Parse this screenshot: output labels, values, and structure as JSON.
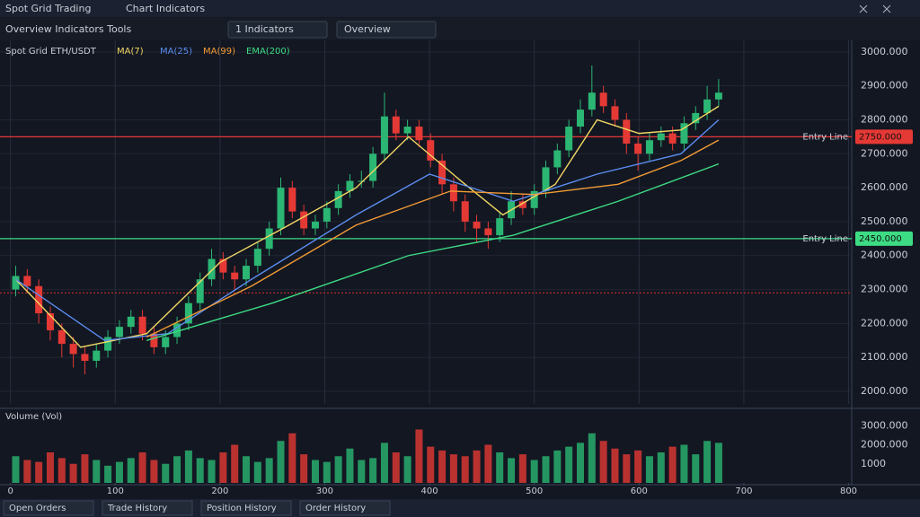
{
  "header": {
    "title": "Spot Grid Trading",
    "subtitle": "Chart Indicators"
  },
  "toolbar": {
    "label": "Overview Indicators Tools",
    "buttons": [
      "1 Indicators",
      "Overview"
    ]
  },
  "chart_data": [
    {
      "type": "candlestick",
      "title": "Spot Grid ETH/USDT",
      "x": [
        5,
        16,
        27,
        38,
        49,
        60,
        71,
        82,
        93,
        104,
        115,
        126,
        137,
        148,
        159,
        170,
        181,
        192,
        203,
        214,
        225,
        236,
        247,
        258,
        269,
        280,
        291,
        302,
        313,
        324,
        335,
        346,
        357,
        368,
        379,
        390,
        401,
        412,
        423,
        434,
        445,
        456,
        467,
        478,
        489,
        500,
        511,
        522,
        533,
        544,
        555,
        566,
        577,
        588,
        599,
        610,
        621,
        632,
        643,
        654,
        665,
        676
      ],
      "open": [
        2300,
        2340,
        2310,
        2230,
        2180,
        2140,
        2110,
        2090,
        2120,
        2160,
        2190,
        2220,
        2170,
        2130,
        2160,
        2200,
        2260,
        2330,
        2390,
        2350,
        2330,
        2370,
        2420,
        2480,
        2600,
        2530,
        2480,
        2500,
        2540,
        2590,
        2620,
        2620,
        2700,
        2810,
        2760,
        2780,
        2740,
        2680,
        2610,
        2560,
        2500,
        2480,
        2460,
        2510,
        2560,
        2540,
        2590,
        2660,
        2710,
        2780,
        2830,
        2880,
        2840,
        2800,
        2730,
        2700,
        2740,
        2760,
        2730,
        2790,
        2820,
        2860
      ],
      "high": [
        2370,
        2360,
        2330,
        2250,
        2200,
        2160,
        2130,
        2140,
        2180,
        2210,
        2240,
        2240,
        2190,
        2180,
        2220,
        2280,
        2350,
        2420,
        2410,
        2370,
        2390,
        2440,
        2500,
        2630,
        2620,
        2550,
        2520,
        2560,
        2610,
        2640,
        2650,
        2720,
        2880,
        2830,
        2800,
        2800,
        2760,
        2700,
        2630,
        2580,
        2520,
        2500,
        2530,
        2590,
        2580,
        2610,
        2680,
        2730,
        2800,
        2860,
        2960,
        2900,
        2860,
        2820,
        2750,
        2760,
        2780,
        2780,
        2810,
        2840,
        2900,
        2920
      ],
      "low": [
        2280,
        2290,
        2200,
        2150,
        2100,
        2070,
        2050,
        2070,
        2100,
        2140,
        2170,
        2150,
        2110,
        2110,
        2140,
        2180,
        2240,
        2310,
        2330,
        2300,
        2310,
        2350,
        2400,
        2460,
        2510,
        2460,
        2460,
        2480,
        2520,
        2570,
        2600,
        2600,
        2680,
        2740,
        2740,
        2720,
        2660,
        2580,
        2530,
        2470,
        2440,
        2420,
        2440,
        2490,
        2520,
        2520,
        2570,
        2640,
        2690,
        2760,
        2810,
        2820,
        2780,
        2700,
        2650,
        2680,
        2720,
        2710,
        2710,
        2770,
        2800,
        2840
      ],
      "close": [
        2340,
        2310,
        2230,
        2180,
        2140,
        2110,
        2090,
        2120,
        2160,
        2190,
        2220,
        2170,
        2130,
        2160,
        2200,
        2260,
        2330,
        2390,
        2350,
        2330,
        2370,
        2420,
        2480,
        2600,
        2530,
        2480,
        2500,
        2540,
        2590,
        2620,
        2620,
        2700,
        2810,
        2760,
        2780,
        2740,
        2680,
        2610,
        2560,
        2500,
        2480,
        2460,
        2510,
        2560,
        2540,
        2590,
        2660,
        2710,
        2780,
        2830,
        2880,
        2840,
        2800,
        2730,
        2700,
        2740,
        2760,
        2730,
        2790,
        2820,
        2860,
        2880
      ],
      "up_color": "#2bb673",
      "down_color": "#e53935",
      "series": [
        {
          "name": "MA(7)",
          "color": "#f2d864",
          "x": [
            5,
            67,
            130,
            200,
            260,
            330,
            380,
            430,
            470,
            520,
            560,
            600,
            640,
            676
          ],
          "values": [
            2330,
            2130,
            2170,
            2380,
            2480,
            2600,
            2750,
            2620,
            2520,
            2610,
            2800,
            2760,
            2770,
            2840
          ]
        },
        {
          "name": "MA(25)",
          "color": "#5b8def",
          "x": [
            5,
            90,
            150,
            230,
            330,
            400,
            480,
            560,
            640,
            676
          ],
          "values": [
            2330,
            2150,
            2170,
            2330,
            2520,
            2640,
            2560,
            2640,
            2700,
            2800
          ]
        },
        {
          "name": "MA(99)",
          "color": "#f39c35",
          "x": [
            130,
            230,
            330,
            420,
            500,
            580,
            640,
            676
          ],
          "values": [
            2160,
            2310,
            2490,
            2590,
            2580,
            2610,
            2680,
            2740
          ]
        },
        {
          "name": "EMA(200)",
          "color": "#3ddc84",
          "x": [
            130,
            250,
            380,
            480,
            580,
            676
          ],
          "values": [
            2150,
            2260,
            2400,
            2460,
            2560,
            2670
          ]
        }
      ],
      "levels": [
        {
          "name": "Entry Line",
          "value": 2750,
          "label": "2750.000",
          "color": "#e53935"
        },
        {
          "name": "Entry Line",
          "value": 2450,
          "label": "2450.000",
          "color": "#3ddc84"
        },
        {
          "value": 2290,
          "color": "#b52a2a"
        }
      ],
      "xlim": [
        -10,
        803
      ],
      "ylim": [
        1963,
        3034
      ],
      "yticks": [
        {
          "value": 2000,
          "label": "2000.000"
        },
        {
          "value": 2100,
          "label": "2100.000"
        },
        {
          "value": 2200,
          "label": "2200.000"
        },
        {
          "value": 2300,
          "label": "2300.000"
        },
        {
          "value": 2400,
          "label": "2400.000"
        },
        {
          "value": 2500,
          "label": "2500.000"
        },
        {
          "value": 2600,
          "label": "2600.000"
        },
        {
          "value": 2700,
          "label": "2700.000"
        },
        {
          "value": 2800,
          "label": "2800.000"
        },
        {
          "value": 2900,
          "label": "2900.000"
        },
        {
          "value": 3000,
          "label": "3000.000"
        }
      ],
      "grid": true
    },
    {
      "type": "bar",
      "title": "Volume (Vol)",
      "x": [
        5,
        16,
        27,
        38,
        49,
        60,
        71,
        82,
        93,
        104,
        115,
        126,
        137,
        148,
        159,
        170,
        181,
        192,
        203,
        214,
        225,
        236,
        247,
        258,
        269,
        280,
        291,
        302,
        313,
        324,
        335,
        346,
        357,
        368,
        379,
        390,
        401,
        412,
        423,
        434,
        445,
        456,
        467,
        478,
        489,
        500,
        511,
        522,
        533,
        544,
        555,
        566,
        577,
        588,
        599,
        610,
        621,
        632,
        643,
        654,
        665,
        676
      ],
      "values": [
        1400,
        1200,
        1100,
        1600,
        1300,
        1000,
        1500,
        1200,
        900,
        1100,
        1300,
        1600,
        1200,
        1000,
        1400,
        1700,
        1300,
        1200,
        1600,
        2000,
        1400,
        1100,
        1300,
        2200,
        2600,
        1500,
        1200,
        1100,
        1400,
        1800,
        1200,
        1300,
        2100,
        1600,
        1400,
        2800,
        1900,
        1700,
        1500,
        1400,
        1700,
        2000,
        1600,
        1300,
        1500,
        1200,
        1400,
        1700,
        1900,
        2100,
        2600,
        2200,
        1800,
        1500,
        1700,
        1400,
        1600,
        1900,
        2000,
        1500,
        2200,
        2100
      ],
      "xlim": [
        -10,
        803
      ],
      "ylim": [
        0,
        3200
      ],
      "yticks": [
        1000,
        {
          "value": 2000,
          "label": "2000.000"
        },
        {
          "value": 3000,
          "label": "3000.000"
        }
      ],
      "xticks": [
        0,
        100,
        200,
        300,
        400,
        500,
        600,
        700,
        800
      ]
    }
  ],
  "footer": {
    "tabs": [
      "Open Orders",
      "Trade History",
      "Position History",
      "Order History"
    ]
  }
}
